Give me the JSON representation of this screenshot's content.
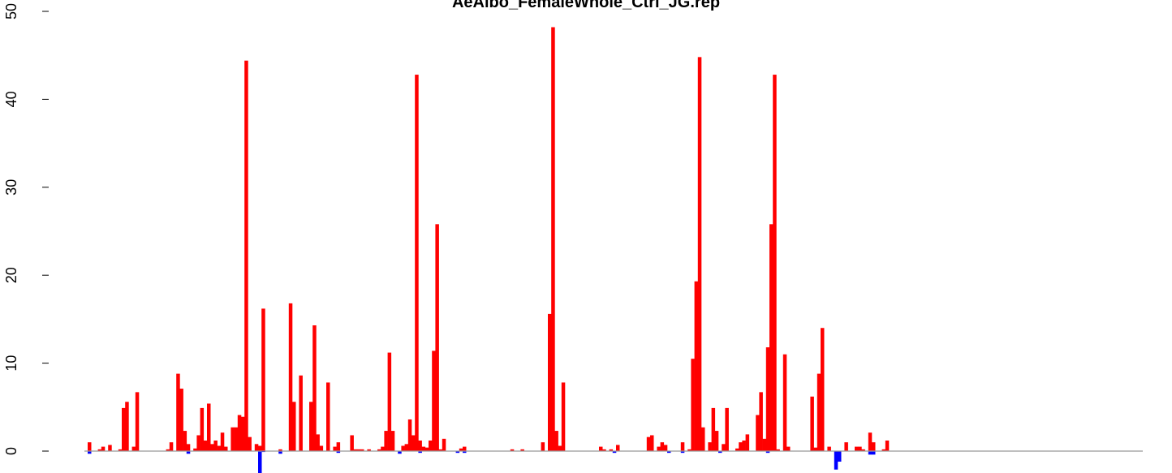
{
  "chart_data": {
    "type": "bar",
    "title": "AeAlbo_FemaleWhole_Ctrl_JG.rep",
    "xlabel": "",
    "ylabel": "",
    "ylim": [
      -2.5,
      50
    ],
    "y_ticks": [
      0,
      10,
      20,
      30,
      40,
      50
    ],
    "y_tick_labels": [
      "0",
      "10",
      "20",
      "30",
      "40",
      "50"
    ],
    "x_axis_shown": false,
    "grid": false,
    "legend": "none",
    "colors": {
      "positive": "#ff0000",
      "negative": "#0000ff",
      "baseline": "#999999"
    },
    "series": [
      {
        "values": [
          1,
          0,
          0,
          0.2,
          0.5,
          0,
          0.7,
          0,
          0,
          0.2,
          4.9,
          5.6,
          0,
          0.5,
          6.7,
          0,
          0,
          0,
          0,
          0,
          0,
          0,
          0,
          0.2,
          1,
          0,
          8.8,
          7.1,
          2.3,
          0.8,
          0,
          0.3,
          1.8,
          4.9,
          1.2,
          5.4,
          0.8,
          1.2,
          0.6,
          2.1,
          0.5,
          0,
          2.7,
          2.7,
          4.1,
          3.9,
          44.4,
          1.6,
          0,
          0.8,
          0.6,
          16.2,
          0,
          0,
          0,
          0,
          0.2,
          0,
          0,
          16.8,
          5.6,
          0,
          8.6,
          0,
          0,
          5.6,
          14.3,
          1.9,
          0.6,
          0,
          7.8,
          0,
          0.5,
          1,
          0,
          0,
          0,
          1.8,
          0.2,
          0.2,
          0.2,
          0,
          0.2,
          0,
          0,
          0.2,
          0.5,
          2.3,
          11.2,
          2.3,
          0,
          0,
          0.6,
          0.8,
          3.6,
          1.8,
          42.8,
          1.2,
          0.5,
          0.4,
          1.2,
          11.4,
          25.8,
          0.2,
          1.4,
          0,
          0,
          0,
          0,
          0.3,
          0.5,
          0,
          0,
          0,
          0,
          0,
          0,
          0,
          0,
          0,
          0,
          0,
          0,
          0,
          0.2,
          0,
          0,
          0.2,
          0,
          0,
          0,
          0,
          0,
          1,
          0,
          15.6,
          48.2,
          2.3,
          0.6,
          7.8,
          0,
          0,
          0,
          0,
          0,
          0,
          0,
          0,
          0,
          0,
          0.5,
          0.2,
          0,
          0.2,
          0,
          0.7,
          0,
          0,
          0,
          0,
          0,
          0,
          0,
          0,
          1.6,
          1.8,
          0,
          0.5,
          1,
          0.7,
          0,
          0,
          0,
          0,
          1,
          0,
          0.2,
          10.5,
          19.3,
          44.8,
          2.7,
          0,
          1,
          4.9,
          2.3,
          0,
          0.8,
          4.9,
          0,
          0,
          0.3,
          1,
          1.2,
          1.9,
          0,
          0,
          4.1,
          6.7,
          1.4,
          11.8,
          25.8,
          42.8,
          0.2,
          0,
          11,
          0.5,
          0,
          0,
          0,
          0,
          0,
          0,
          6.2,
          0.4,
          8.8,
          14,
          0,
          0.5,
          0,
          0,
          0,
          0,
          1,
          0,
          0,
          0.5,
          0.5,
          0.2,
          0,
          2.1,
          1,
          0,
          0,
          0.2,
          1.2
        ],
        "negative_values": [
          -0.3,
          0,
          0,
          0,
          0,
          0,
          0,
          0,
          0,
          0,
          0,
          0,
          0,
          0,
          0,
          0,
          0,
          0,
          0,
          0,
          0,
          0,
          0,
          0,
          0,
          0,
          0,
          0,
          0,
          -0.3,
          0,
          0,
          0,
          0,
          0,
          0,
          0,
          0,
          0,
          0,
          0,
          0,
          0,
          0,
          0,
          0,
          0,
          0,
          0,
          0,
          -2.5,
          -0.1,
          0,
          0,
          0,
          0,
          -0.3,
          0,
          0,
          0,
          0,
          0,
          0,
          0,
          0,
          0,
          0,
          0,
          0,
          0,
          0,
          0,
          0,
          -0.2,
          0,
          0,
          0,
          0,
          0,
          0,
          0,
          0,
          0,
          0,
          0,
          0,
          0,
          0,
          0,
          0,
          0,
          -0.3,
          0,
          0,
          0,
          0,
          0,
          -0.2,
          0,
          0,
          0,
          0,
          0,
          0,
          0,
          0,
          0,
          0,
          -0.2,
          0,
          -0.2,
          0,
          0,
          0,
          0,
          0,
          0,
          0,
          0,
          0,
          0,
          0,
          0,
          0,
          0,
          0,
          0,
          0,
          0,
          0,
          0,
          0,
          0,
          0,
          0,
          0,
          0,
          0,
          0,
          0,
          0,
          0,
          0,
          0,
          0,
          0,
          0,
          0,
          0,
          0,
          0,
          0,
          0,
          0,
          -0.2,
          0,
          0,
          0,
          0,
          0,
          0,
          0,
          0,
          0,
          0,
          0,
          0,
          0,
          0,
          0,
          -0.2,
          0,
          0,
          0,
          -0.2,
          0,
          0,
          0,
          0,
          0,
          0,
          0,
          0,
          0,
          0,
          -0.2,
          0,
          0,
          0,
          0,
          0,
          0,
          0,
          0,
          0,
          0,
          0,
          0,
          0,
          -0.2,
          0,
          0,
          0,
          0,
          0,
          0,
          0,
          0,
          0,
          0,
          0,
          0,
          0,
          0,
          0,
          0,
          0,
          0,
          0,
          -2.1,
          -1.2,
          0,
          0,
          0,
          0,
          0,
          0,
          0,
          0,
          -0.4,
          -0.4,
          0,
          0,
          0,
          0
        ]
      }
    ]
  }
}
